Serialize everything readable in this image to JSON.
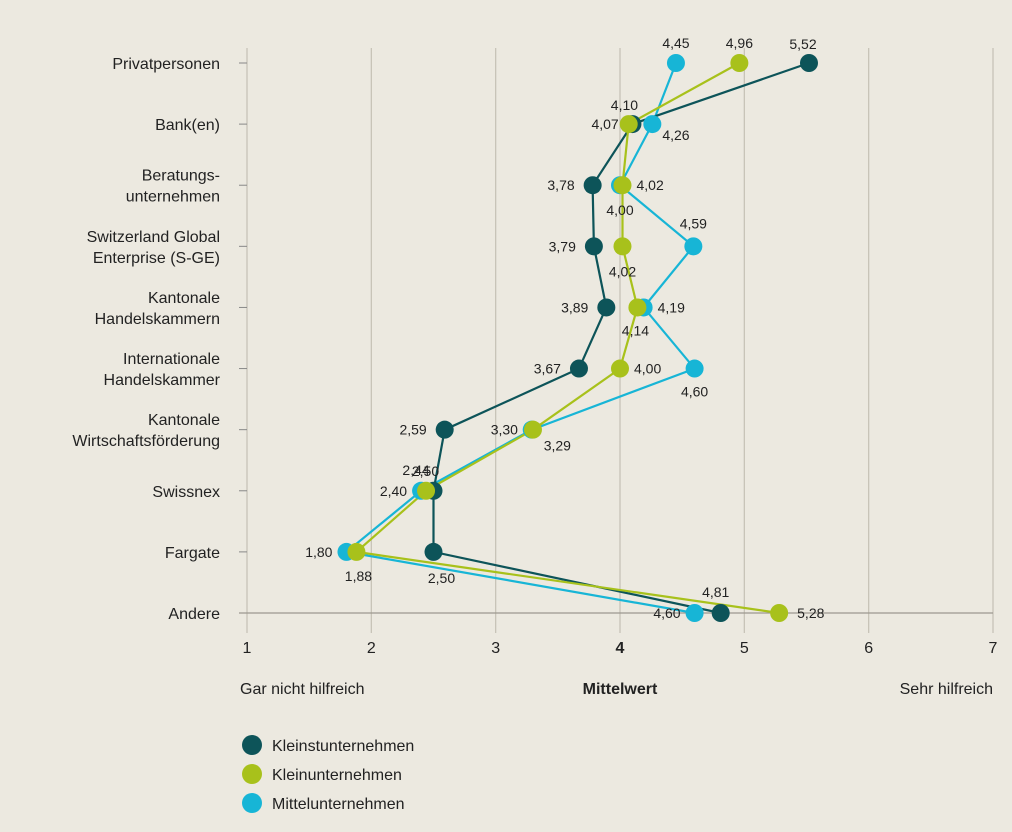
{
  "chart_data": {
    "type": "line",
    "orientation": "horizontal",
    "categories": [
      "Privatpersonen",
      "Bank(en)",
      "Beratungs-\nunternehmen",
      "Switzerland Global\nEnterprise (S-GE)",
      "Kantonale\nHandelskammern",
      "Internationale\nHandelskammer",
      "Kantonale\nWirtschaftsförderung",
      "Swissnex",
      "Fargate",
      "Andere"
    ],
    "series": [
      {
        "name": "Kleinstunternehmen",
        "color": "#0d5459",
        "values": [
          5.52,
          4.1,
          3.78,
          3.79,
          3.89,
          3.67,
          2.59,
          2.5,
          2.5,
          4.81
        ],
        "labels": [
          "5,52",
          "4,10",
          "3,78",
          "3,79",
          "3,89",
          "3,67",
          "2,59",
          "2,50",
          "2,50",
          "4,81"
        ]
      },
      {
        "name": "Kleinunternehmen",
        "color": "#a8c11b",
        "values": [
          4.96,
          4.07,
          4.02,
          4.02,
          4.14,
          4.0,
          3.3,
          2.44,
          1.88,
          5.28
        ],
        "labels": [
          "4,96",
          "4,07",
          "4,02",
          "4,02",
          "4,14",
          "4,00",
          "3,30",
          "2,44",
          "1,88",
          "5,28"
        ]
      },
      {
        "name": "Mittelunternehmen",
        "color": "#17b5d6",
        "values": [
          4.45,
          4.26,
          4.0,
          4.59,
          4.19,
          4.6,
          3.29,
          2.4,
          1.8,
          4.6
        ],
        "labels": [
          "4,45",
          "4,26",
          "4,00",
          "4,59",
          "4,19",
          "4,60",
          "3,29",
          "2,40",
          "1,80",
          "4,60"
        ]
      }
    ],
    "x_ticks": [
      "1",
      "2",
      "3",
      "4",
      "5",
      "6",
      "7"
    ],
    "xlim": [
      1,
      7
    ],
    "bold_tick": "4",
    "xlabel": "Mittelwert",
    "x_left_note": "Gar nicht hilfreich",
    "x_right_note": "Sehr hilfreich",
    "grid": true,
    "legend_position": "bottom-left"
  }
}
